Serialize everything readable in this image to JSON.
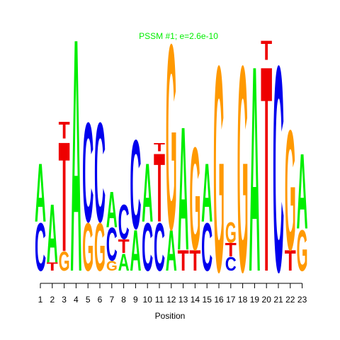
{
  "chart_data": {
    "type": "sequence-logo",
    "title": "PSSM #1; e=2.6e-10",
    "xlabel": "Position",
    "ylabel": "",
    "colors": {
      "A": "#00ee00",
      "C": "#0000ee",
      "G": "#ff9900",
      "T": "#ee0000",
      "title": "#00ee00"
    },
    "positions": [
      {
        "pos": "1",
        "stack": [
          [
            "C",
            0.7
          ],
          [
            "A",
            0.85
          ]
        ]
      },
      {
        "pos": "2",
        "stack": [
          [
            "T",
            0.12
          ],
          [
            "A",
            0.85
          ]
        ]
      },
      {
        "pos": "3",
        "stack": [
          [
            "G",
            0.28
          ],
          [
            "T",
            1.6
          ],
          [
            "T",
            0.25
          ]
        ]
      },
      {
        "pos": "4",
        "stack": [
          [
            "A",
            3.4
          ]
        ]
      },
      {
        "pos": "5",
        "stack": [
          [
            "G",
            0.7
          ],
          [
            "C",
            1.45
          ]
        ]
      },
      {
        "pos": "6",
        "stack": [
          [
            "G",
            0.7
          ],
          [
            "C",
            1.45
          ]
        ]
      },
      {
        "pos": "7",
        "stack": [
          [
            "G",
            0.14
          ],
          [
            "C",
            0.48
          ],
          [
            "A",
            0.52
          ]
        ]
      },
      {
        "pos": "8",
        "stack": [
          [
            "A",
            0.25
          ],
          [
            "T",
            0.2
          ],
          [
            "C",
            0.5
          ]
        ]
      },
      {
        "pos": "9",
        "stack": [
          [
            "A",
            0.6
          ],
          [
            "C",
            1.3
          ]
        ]
      },
      {
        "pos": "10",
        "stack": [
          [
            "C",
            0.7
          ],
          [
            "A",
            0.85
          ]
        ]
      },
      {
        "pos": "11",
        "stack": [
          [
            "C",
            0.7
          ],
          [
            "T",
            1.0
          ],
          [
            "T",
            0.12
          ]
        ]
      },
      {
        "pos": "12",
        "stack": [
          [
            "A",
            0.6
          ],
          [
            "G",
            2.7
          ]
        ]
      },
      {
        "pos": "13",
        "stack": [
          [
            "T",
            0.3
          ],
          [
            "A",
            1.8
          ]
        ]
      },
      {
        "pos": "14",
        "stack": [
          [
            "T",
            0.3
          ],
          [
            "G",
            1.5
          ]
        ]
      },
      {
        "pos": "15",
        "stack": [
          [
            "C",
            0.7
          ],
          [
            "A",
            0.85
          ]
        ]
      },
      {
        "pos": "16",
        "stack": [
          [
            "G",
            3.0
          ]
        ]
      },
      {
        "pos": "17",
        "stack": [
          [
            "C",
            0.2
          ],
          [
            "T",
            0.2
          ],
          [
            "G",
            0.3
          ]
        ]
      },
      {
        "pos": "18",
        "stack": [
          [
            "G",
            3.0
          ]
        ]
      },
      {
        "pos": "19",
        "stack": [
          [
            "A",
            3.0
          ]
        ]
      },
      {
        "pos": "20",
        "stack": [
          [
            "T",
            3.0
          ],
          [
            "T",
            0.28
          ]
        ]
      },
      {
        "pos": "21",
        "stack": [
          [
            "C",
            3.0
          ]
        ]
      },
      {
        "pos": "22",
        "stack": [
          [
            "T",
            0.3
          ],
          [
            "G",
            1.75
          ]
        ]
      },
      {
        "pos": "23",
        "stack": [
          [
            "G",
            0.6
          ],
          [
            "A",
            1.1
          ]
        ]
      }
    ],
    "ylim": [
      0,
      3.28
    ],
    "grid": false,
    "legend": "none"
  }
}
